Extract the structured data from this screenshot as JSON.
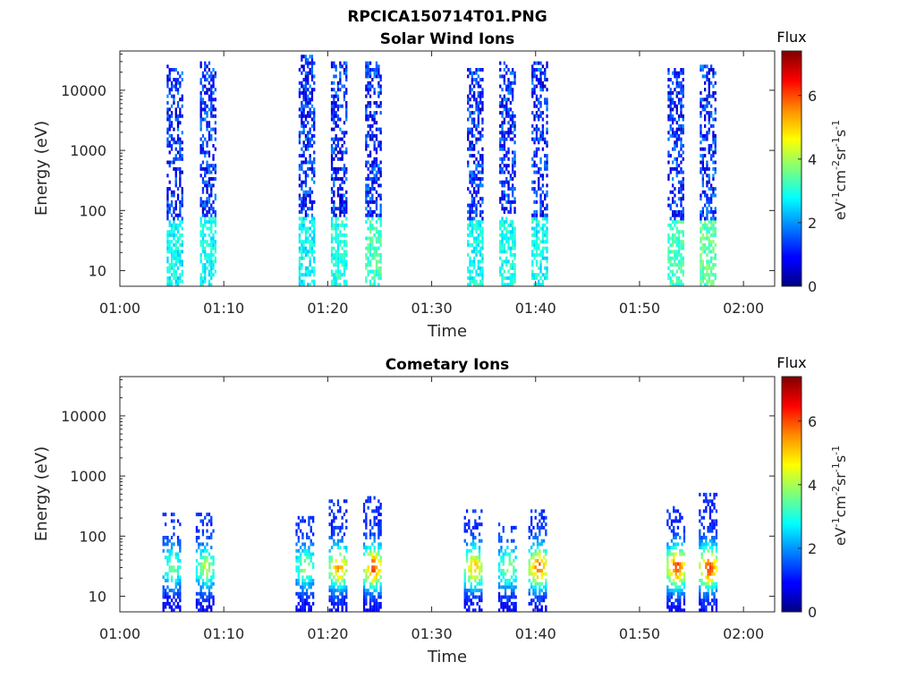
{
  "figure": {
    "filename_title": "RPCICA150714T01.PNG"
  },
  "colorbar": {
    "title": "Flux",
    "unit": {
      "base": "eV",
      "exp1": "-1",
      "cm": "cm",
      "exp2": "-2",
      "sr": "sr",
      "exp3": "-1",
      "s": "s",
      "exp4": "-1"
    },
    "ticks": [
      "0",
      "2",
      "4",
      "6"
    ],
    "range": [
      0,
      7.4
    ]
  },
  "chart_data": [
    {
      "type": "heatmap",
      "title": "Solar Wind Ions",
      "xlabel": "Time",
      "ylabel": "Energy (eV)",
      "x_ticks": [
        "01:00",
        "01:10",
        "01:20",
        "01:30",
        "01:40",
        "01:50",
        "02:00"
      ],
      "y_ticks": [
        "10",
        "100",
        "1000",
        "10000"
      ],
      "y_scale": "log",
      "x_range_min": [
        0,
        63
      ],
      "y_range_eV": [
        5.5,
        45000
      ],
      "bursts": [
        {
          "center_min": 5.3,
          "width_min": 1.6,
          "top_eV": 25000,
          "low_flux": 2.3
        },
        {
          "center_min": 8.5,
          "width_min": 1.6,
          "top_eV": 30000,
          "low_flux": 2.4
        },
        {
          "center_min": 18.0,
          "width_min": 1.6,
          "top_eV": 35000,
          "low_flux": 2.3
        },
        {
          "center_min": 21.1,
          "width_min": 1.6,
          "top_eV": 30000,
          "low_flux": 2.5
        },
        {
          "center_min": 24.4,
          "width_min": 1.6,
          "top_eV": 30000,
          "low_flux": 2.8
        },
        {
          "center_min": 34.2,
          "width_min": 1.6,
          "top_eV": 22000,
          "low_flux": 2.4
        },
        {
          "center_min": 37.3,
          "width_min": 1.6,
          "top_eV": 30000,
          "low_flux": 2.4
        },
        {
          "center_min": 40.4,
          "width_min": 1.6,
          "top_eV": 30000,
          "low_flux": 2.4
        },
        {
          "center_min": 53.5,
          "width_min": 1.6,
          "top_eV": 22000,
          "low_flux": 2.8
        },
        {
          "center_min": 56.6,
          "width_min": 1.6,
          "top_eV": 25000,
          "low_flux": 3.0
        }
      ]
    },
    {
      "type": "heatmap",
      "title": "Cometary Ions",
      "xlabel": "Time",
      "ylabel": "Energy (eV)",
      "x_ticks": [
        "01:00",
        "01:10",
        "01:20",
        "01:30",
        "01:40",
        "01:50",
        "02:00"
      ],
      "y_ticks": [
        "10",
        "100",
        "1000",
        "10000"
      ],
      "y_scale": "log",
      "x_range_min": [
        0,
        63
      ],
      "y_range_eV": [
        5.5,
        45000
      ],
      "bursts": [
        {
          "center_min": 5.0,
          "width_min": 1.8,
          "top_eV": 220,
          "peak_flux": 3.3
        },
        {
          "center_min": 8.2,
          "width_min": 1.8,
          "top_eV": 220,
          "peak_flux": 3.8
        },
        {
          "center_min": 17.8,
          "width_min": 1.8,
          "top_eV": 200,
          "peak_flux": 3.5
        },
        {
          "center_min": 21.0,
          "width_min": 1.8,
          "top_eV": 380,
          "peak_flux": 5.2
        },
        {
          "center_min": 24.3,
          "width_min": 1.8,
          "top_eV": 450,
          "peak_flux": 5.8
        },
        {
          "center_min": 34.0,
          "width_min": 1.8,
          "top_eV": 250,
          "peak_flux": 4.9
        },
        {
          "center_min": 37.3,
          "width_min": 1.8,
          "top_eV": 150,
          "peak_flux": 3.6
        },
        {
          "center_min": 40.2,
          "width_min": 1.8,
          "top_eV": 250,
          "peak_flux": 5.6
        },
        {
          "center_min": 53.5,
          "width_min": 1.8,
          "top_eV": 300,
          "peak_flux": 5.8
        },
        {
          "center_min": 56.6,
          "width_min": 1.8,
          "top_eV": 500,
          "peak_flux": 5.9
        }
      ]
    }
  ]
}
